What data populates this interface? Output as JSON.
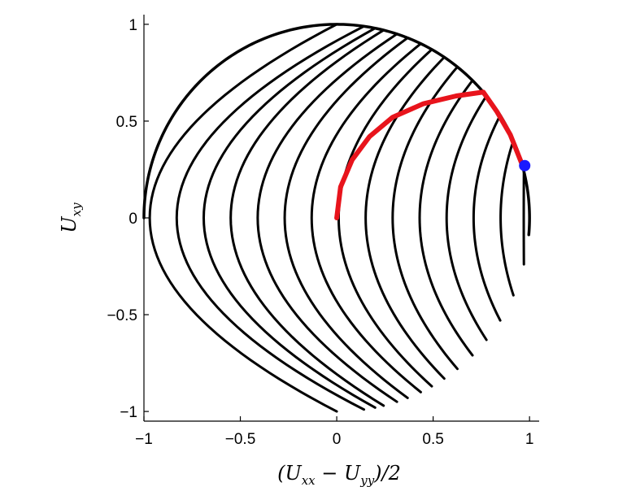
{
  "chart_data": {
    "type": "line",
    "title": "",
    "xlabel": "(U_xx − U_yy)/2",
    "ylabel": "U_xy",
    "xlabel_parts": {
      "open": "(U",
      "sub1": "xx",
      "mid": " − U",
      "sub2": "yy",
      "close": ")/2"
    },
    "ylabel_parts": {
      "base": "U",
      "sub": "xy"
    },
    "xlim": [
      -1,
      1.05
    ],
    "ylim": [
      -1.05,
      1.05
    ],
    "xticks": [
      -1,
      -0.5,
      0,
      0.5,
      1
    ],
    "yticks": [
      -1,
      -0.5,
      0,
      0.5,
      1
    ],
    "xtick_labels": [
      "−1",
      "−0.5",
      "0",
      "0.5",
      "1"
    ],
    "ytick_labels": [
      "−1",
      "−0.5",
      "0",
      "0.5",
      "1"
    ],
    "grid": false,
    "legend": "none",
    "colors": {
      "curves": "#000000",
      "highlight": "#e8141c",
      "marker": "#1a1aff",
      "axes": "#000000"
    },
    "unit_circle_boundary": {
      "start_angle_deg": -5,
      "end_angle_deg": 180
    },
    "family_curves": [
      {
        "x_vertex": 0.97,
        "y_extent": 0.24
      },
      {
        "x_vertex": 0.85,
        "y_extent": 0.4
      },
      {
        "x_vertex": 0.71,
        "y_extent": 0.53
      },
      {
        "x_vertex": 0.57,
        "y_extent": 0.63
      },
      {
        "x_vertex": 0.43,
        "y_extent": 0.71
      },
      {
        "x_vertex": 0.29,
        "y_extent": 0.78
      },
      {
        "x_vertex": 0.15,
        "y_extent": 0.83
      },
      {
        "x_vertex": 0.01,
        "y_extent": 0.87
      },
      {
        "x_vertex": -0.13,
        "y_extent": 0.9
      },
      {
        "x_vertex": -0.27,
        "y_extent": 0.93
      },
      {
        "x_vertex": -0.41,
        "y_extent": 0.95
      },
      {
        "x_vertex": -0.55,
        "y_extent": 0.97
      },
      {
        "x_vertex": -0.69,
        "y_extent": 0.98
      },
      {
        "x_vertex": -0.83,
        "y_extent": 0.99
      },
      {
        "x_vertex": -0.97,
        "y_extent": 1.0
      }
    ],
    "highlight_path": {
      "points": [
        [
          0,
          0
        ],
        [
          0.02,
          0.16
        ],
        [
          0.08,
          0.3
        ],
        [
          0.17,
          0.42
        ],
        [
          0.29,
          0.52
        ],
        [
          0.45,
          0.59
        ],
        [
          0.62,
          0.63
        ],
        [
          0.76,
          0.65
        ],
        [
          0.83,
          0.55
        ],
        [
          0.9,
          0.43
        ],
        [
          0.96,
          0.28
        ]
      ]
    },
    "marker_point": {
      "x": 0.975,
      "y": 0.27
    }
  }
}
